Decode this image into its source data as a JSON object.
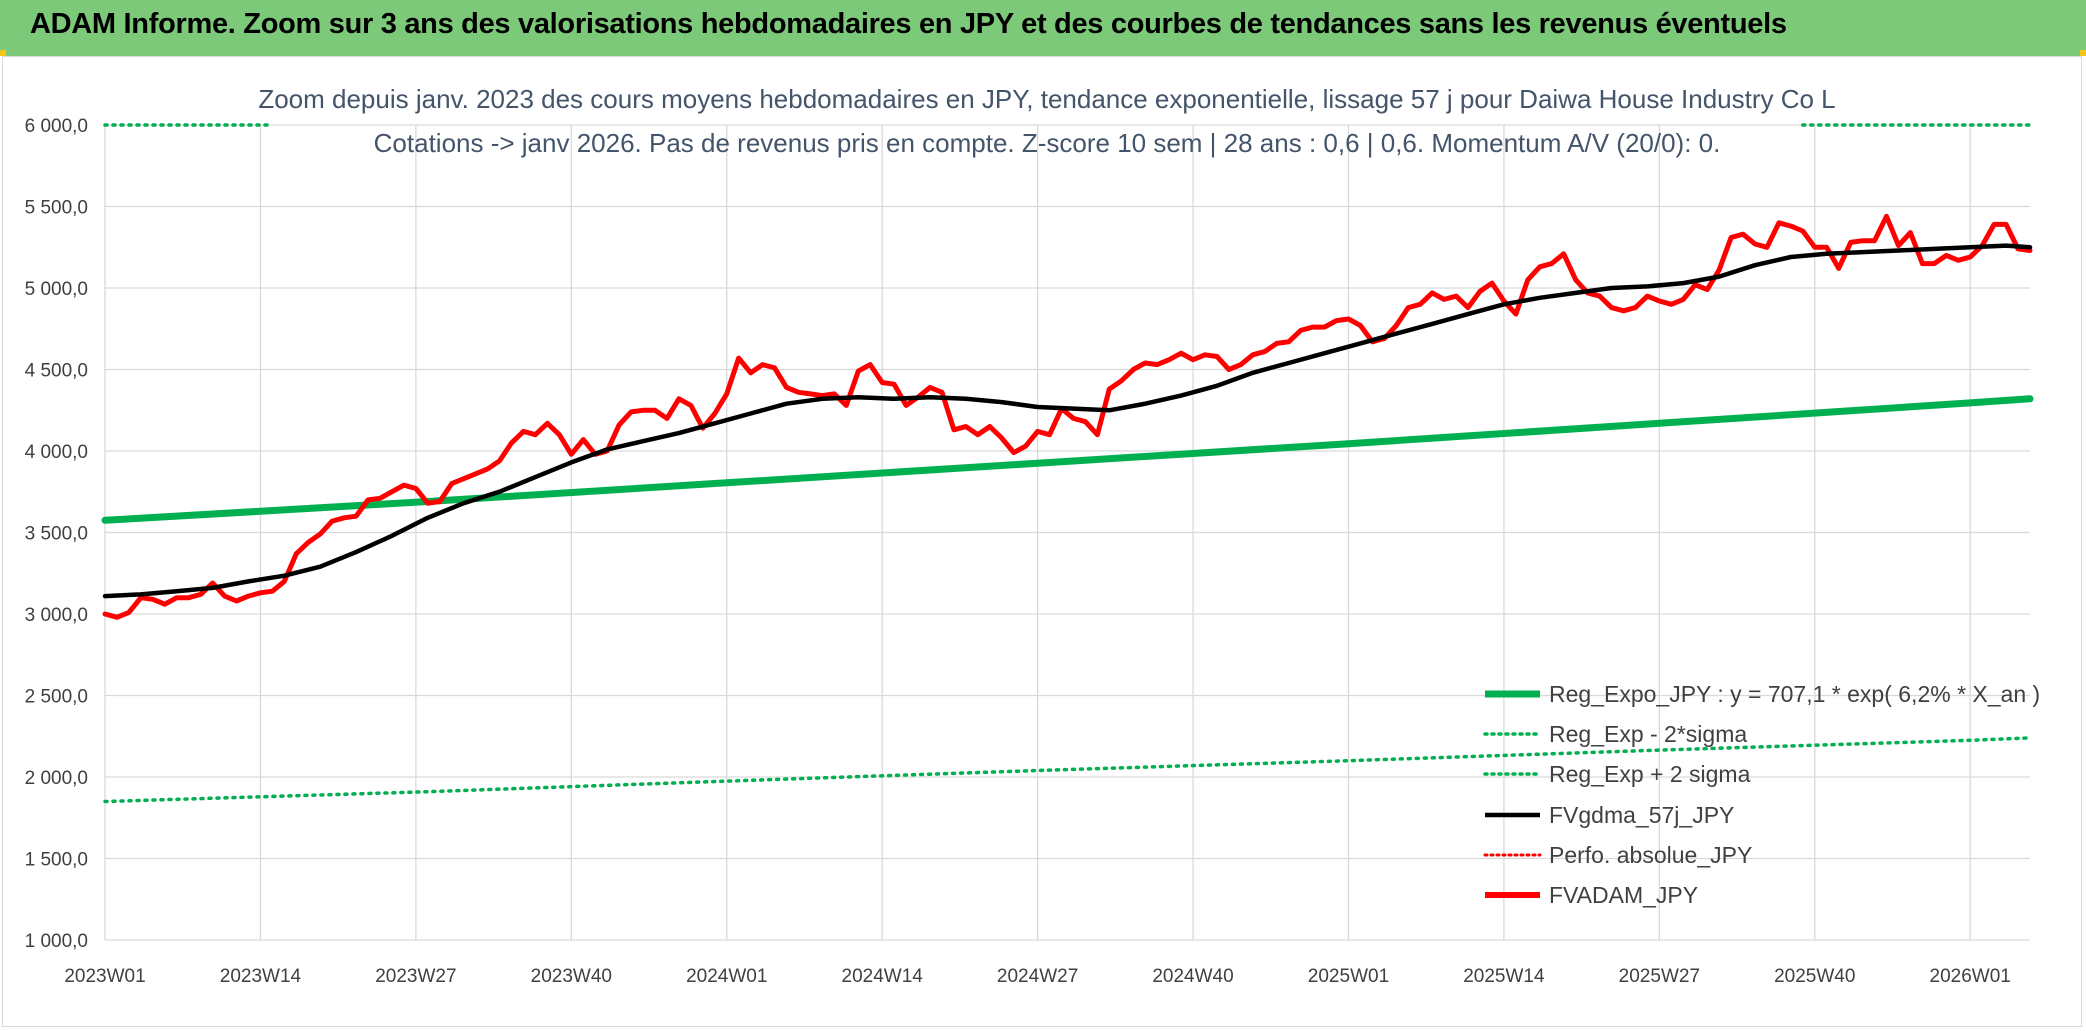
{
  "banner": {
    "title": "ADAM Informe. Zoom sur 3 ans des valorisations hebdomadaires en JPY et des courbes de tendances sans les revenus éventuels"
  },
  "colors": {
    "banner": "#7dc97a",
    "reg_expo": "#00b050",
    "fvgdma": "#000000",
    "fvadam": "#ff0000",
    "perfo": "#ff0000",
    "grid": "#d9d9d9"
  },
  "chart_data": {
    "type": "line",
    "title": "Zoom depuis janv. 2023 des cours moyens hebdomadaires en JPY, tendance exponentielle, lissage 57 j pour Daiwa House Industry Co L",
    "subtitle": "Cotations -> janv 2026. Pas de revenus pris en compte. Z-score 10 sem | 28 ans : 0,6 | 0,6. Momentum A/V (20/0): 0.",
    "xlabel": "",
    "ylabel": "",
    "ylim": [
      1000,
      6000
    ],
    "y_ticks": [
      "6 000,0",
      "5 500,0",
      "5 000,0",
      "4 500,0",
      "4 000,0",
      "3 500,0",
      "3 000,0",
      "2 500,0",
      "2 000,0",
      "1 500,0",
      "1 000,0"
    ],
    "x_ticks": [
      "2023W01",
      "2023W14",
      "2023W27",
      "2023W40",
      "2024W01",
      "2024W14",
      "2024W27",
      "2024W40",
      "2025W01",
      "2025W14",
      "2025W27",
      "2025W40",
      "2026W01"
    ],
    "x_weeks": 162,
    "legend_position": "bottom-right",
    "legend": [
      "Reg_Expo_JPY : y = 707,1 * exp( 6,2% *  X_an )",
      "Reg_Exp - 2*sigma",
      "Reg_Exp + 2 sigma",
      "FVgdma_57j_JPY",
      "Perfo. absolue_JPY",
      "FVADAM_JPY"
    ],
    "series": [
      {
        "name": "Reg_Expo_JPY : y = 707,1 * exp( 6,2% *  X_an )",
        "style": "solid-thick",
        "points": [
          [
            0,
            3575
          ],
          [
            27,
            3690
          ],
          [
            52,
            3805
          ],
          [
            78,
            3925
          ],
          [
            104,
            4045
          ],
          [
            130,
            4170
          ],
          [
            156,
            4295
          ],
          [
            161,
            4320
          ]
        ]
      },
      {
        "name": "Reg_Exp - 2*sigma",
        "style": "dotted",
        "points": [
          [
            0,
            1850
          ],
          [
            27,
            1910
          ],
          [
            52,
            1975
          ],
          [
            78,
            2040
          ],
          [
            104,
            2100
          ],
          [
            130,
            2165
          ],
          [
            156,
            2225
          ],
          [
            161,
            2240
          ]
        ]
      },
      {
        "name": "Reg_Exp + 2 sigma",
        "style": "dotted",
        "points": [
          [
            0,
            6000
          ],
          [
            14,
            6000
          ]
        ],
        "points2": [
          [
            142,
            6000
          ],
          [
            161,
            6000
          ]
        ]
      },
      {
        "name": "FVgdma_57j_JPY",
        "style": "solid",
        "points": [
          [
            0,
            3110
          ],
          [
            3,
            3120
          ],
          [
            6,
            3140
          ],
          [
            9,
            3160
          ],
          [
            12,
            3200
          ],
          [
            15,
            3235
          ],
          [
            18,
            3290
          ],
          [
            21,
            3380
          ],
          [
            24,
            3480
          ],
          [
            27,
            3590
          ],
          [
            30,
            3680
          ],
          [
            33,
            3750
          ],
          [
            36,
            3840
          ],
          [
            39,
            3930
          ],
          [
            42,
            4010
          ],
          [
            45,
            4060
          ],
          [
            48,
            4110
          ],
          [
            51,
            4170
          ],
          [
            54,
            4230
          ],
          [
            57,
            4290
          ],
          [
            60,
            4320
          ],
          [
            63,
            4330
          ],
          [
            66,
            4320
          ],
          [
            69,
            4330
          ],
          [
            72,
            4320
          ],
          [
            75,
            4300
          ],
          [
            78,
            4270
          ],
          [
            81,
            4260
          ],
          [
            84,
            4250
          ],
          [
            87,
            4290
          ],
          [
            90,
            4340
          ],
          [
            93,
            4400
          ],
          [
            96,
            4480
          ],
          [
            99,
            4540
          ],
          [
            102,
            4600
          ],
          [
            105,
            4660
          ],
          [
            108,
            4720
          ],
          [
            111,
            4780
          ],
          [
            114,
            4840
          ],
          [
            117,
            4900
          ],
          [
            120,
            4940
          ],
          [
            123,
            4970
          ],
          [
            126,
            5000
          ],
          [
            129,
            5010
          ],
          [
            132,
            5030
          ],
          [
            135,
            5070
          ],
          [
            138,
            5140
          ],
          [
            141,
            5190
          ],
          [
            144,
            5210
          ],
          [
            147,
            5220
          ],
          [
            150,
            5230
          ],
          [
            153,
            5240
          ],
          [
            156,
            5250
          ],
          [
            159,
            5260
          ],
          [
            161,
            5250
          ]
        ]
      },
      {
        "name": "Perfo. absolue_JPY",
        "style": "dotted",
        "points": []
      },
      {
        "name": "FVADAM_JPY",
        "style": "solid-thick",
        "points": [
          [
            0,
            3000
          ],
          [
            1,
            2980
          ],
          [
            2,
            3010
          ],
          [
            3,
            3100
          ],
          [
            4,
            3090
          ],
          [
            5,
            3060
          ],
          [
            6,
            3100
          ],
          [
            7,
            3100
          ],
          [
            8,
            3120
          ],
          [
            9,
            3190
          ],
          [
            10,
            3110
          ],
          [
            11,
            3080
          ],
          [
            12,
            3110
          ],
          [
            13,
            3130
          ],
          [
            14,
            3140
          ],
          [
            15,
            3200
          ],
          [
            16,
            3370
          ],
          [
            17,
            3440
          ],
          [
            18,
            3490
          ],
          [
            19,
            3570
          ],
          [
            20,
            3590
          ],
          [
            21,
            3600
          ],
          [
            22,
            3700
          ],
          [
            23,
            3710
          ],
          [
            24,
            3750
          ],
          [
            25,
            3790
          ],
          [
            26,
            3770
          ],
          [
            27,
            3680
          ],
          [
            28,
            3690
          ],
          [
            29,
            3800
          ],
          [
            30,
            3830
          ],
          [
            31,
            3860
          ],
          [
            32,
            3890
          ],
          [
            33,
            3940
          ],
          [
            34,
            4050
          ],
          [
            35,
            4120
          ],
          [
            36,
            4100
          ],
          [
            37,
            4170
          ],
          [
            38,
            4100
          ],
          [
            39,
            3980
          ],
          [
            40,
            4070
          ],
          [
            41,
            3980
          ],
          [
            42,
            4000
          ],
          [
            43,
            4160
          ],
          [
            44,
            4240
          ],
          [
            45,
            4250
          ],
          [
            46,
            4250
          ],
          [
            47,
            4200
          ],
          [
            48,
            4320
          ],
          [
            49,
            4280
          ],
          [
            50,
            4140
          ],
          [
            51,
            4230
          ],
          [
            52,
            4350
          ],
          [
            53,
            4570
          ],
          [
            54,
            4480
          ],
          [
            55,
            4530
          ],
          [
            56,
            4510
          ],
          [
            57,
            4390
          ],
          [
            58,
            4360
          ],
          [
            59,
            4350
          ],
          [
            60,
            4340
          ],
          [
            61,
            4350
          ],
          [
            62,
            4280
          ],
          [
            63,
            4490
          ],
          [
            64,
            4530
          ],
          [
            65,
            4420
          ],
          [
            66,
            4410
          ],
          [
            67,
            4280
          ],
          [
            68,
            4330
          ],
          [
            69,
            4390
          ],
          [
            70,
            4360
          ],
          [
            71,
            4130
          ],
          [
            72,
            4150
          ],
          [
            73,
            4100
          ],
          [
            74,
            4150
          ],
          [
            75,
            4080
          ],
          [
            76,
            3990
          ],
          [
            77,
            4030
          ],
          [
            78,
            4120
          ],
          [
            79,
            4100
          ],
          [
            80,
            4260
          ],
          [
            81,
            4200
          ],
          [
            82,
            4180
          ],
          [
            83,
            4100
          ],
          [
            84,
            4380
          ],
          [
            85,
            4430
          ],
          [
            86,
            4500
          ],
          [
            87,
            4540
          ],
          [
            88,
            4530
          ],
          [
            89,
            4560
          ],
          [
            90,
            4600
          ],
          [
            91,
            4560
          ],
          [
            92,
            4590
          ],
          [
            93,
            4580
          ],
          [
            94,
            4500
          ],
          [
            95,
            4530
          ],
          [
            96,
            4590
          ],
          [
            97,
            4610
          ],
          [
            98,
            4660
          ],
          [
            99,
            4670
          ],
          [
            100,
            4740
          ],
          [
            101,
            4760
          ],
          [
            102,
            4760
          ],
          [
            103,
            4800
          ],
          [
            104,
            4810
          ],
          [
            105,
            4770
          ],
          [
            106,
            4670
          ],
          [
            107,
            4690
          ],
          [
            108,
            4770
          ],
          [
            109,
            4880
          ],
          [
            110,
            4900
          ],
          [
            111,
            4970
          ],
          [
            112,
            4930
          ],
          [
            113,
            4950
          ],
          [
            114,
            4880
          ],
          [
            115,
            4980
          ],
          [
            116,
            5030
          ],
          [
            117,
            4920
          ],
          [
            118,
            4840
          ],
          [
            119,
            5050
          ],
          [
            120,
            5130
          ],
          [
            121,
            5150
          ],
          [
            122,
            5210
          ],
          [
            123,
            5050
          ],
          [
            124,
            4970
          ],
          [
            125,
            4950
          ],
          [
            126,
            4880
          ],
          [
            127,
            4860
          ],
          [
            128,
            4880
          ],
          [
            129,
            4950
          ],
          [
            130,
            4920
          ],
          [
            131,
            4900
          ],
          [
            132,
            4930
          ],
          [
            133,
            5020
          ],
          [
            134,
            4990
          ],
          [
            135,
            5110
          ],
          [
            136,
            5310
          ],
          [
            137,
            5330
          ],
          [
            138,
            5270
          ],
          [
            139,
            5250
          ],
          [
            140,
            5400
          ],
          [
            141,
            5380
          ],
          [
            142,
            5350
          ],
          [
            143,
            5250
          ],
          [
            144,
            5250
          ],
          [
            145,
            5120
          ],
          [
            146,
            5280
          ],
          [
            147,
            5290
          ],
          [
            148,
            5290
          ],
          [
            149,
            5440
          ],
          [
            150,
            5260
          ],
          [
            151,
            5340
          ],
          [
            152,
            5150
          ],
          [
            153,
            5150
          ],
          [
            154,
            5200
          ],
          [
            155,
            5170
          ],
          [
            156,
            5190
          ],
          [
            157,
            5260
          ],
          [
            158,
            5390
          ],
          [
            159,
            5390
          ],
          [
            160,
            5240
          ],
          [
            161,
            5230
          ]
        ]
      }
    ]
  }
}
